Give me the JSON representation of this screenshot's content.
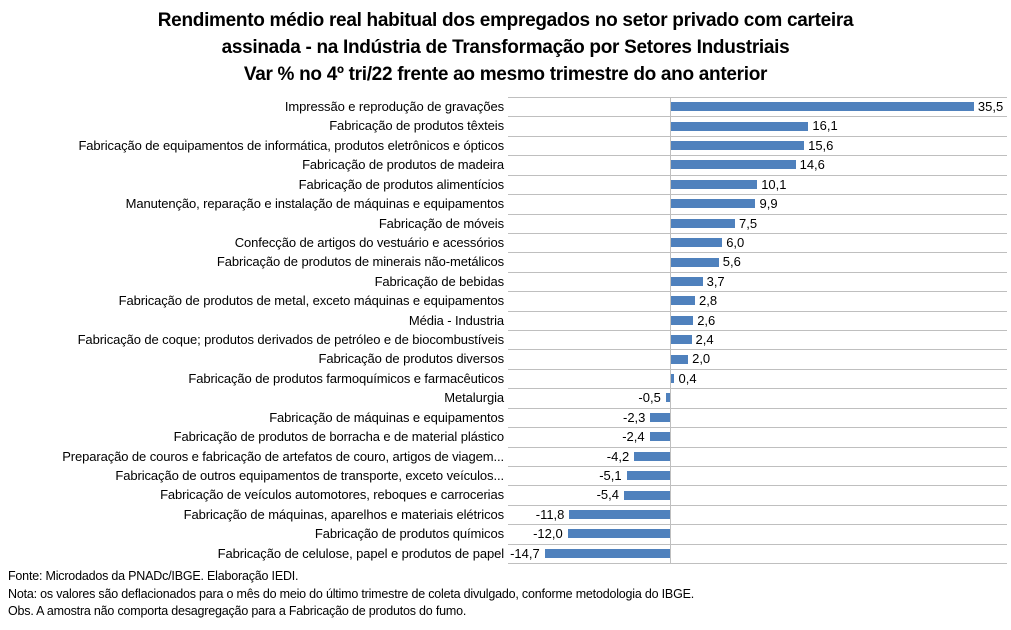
{
  "title": {
    "lines": [
      "Rendimento médio real habitual dos empregados no setor privado com carteira",
      "assinada - na Indústria de Transformação por Setores Industriais",
      "Var % no 4º tri/22 frente ao mesmo trimestre do ano anterior"
    ]
  },
  "chart_data": {
    "type": "bar",
    "orientation": "horizontal",
    "title": "Rendimento médio real habitual dos empregados no setor privado com carteira assinada - na Indústria de Transformação por Setores Industriais - Var % no 4º tri/22 frente ao mesmo trimestre do ano anterior",
    "categories": [
      "Impressão e reprodução de gravações",
      "Fabricação de produtos têxteis",
      "Fabricação de equipamentos de informática, produtos eletrônicos e ópticos",
      "Fabricação de produtos de madeira",
      "Fabricação de produtos alimentícios",
      "Manutenção, reparação e instalação de máquinas e equipamentos",
      "Fabricação de móveis",
      "Confecção de artigos do vestuário e acessórios",
      "Fabricação de produtos de minerais não-metálicos",
      "Fabricação de bebidas",
      "Fabricação de produtos de metal, exceto máquinas e equipamentos",
      "Média - Industria",
      "Fabricação de coque; produtos derivados de petróleo e de biocombustíveis",
      "Fabricação de produtos diversos",
      "Fabricação de produtos farmoquímicos e farmacêuticos",
      "Metalurgia",
      "Fabricação de máquinas e equipamentos",
      "Fabricação de produtos de borracha e de material plástico",
      "Preparação de couros e fabricação de artefatos de couro, artigos de viagem...",
      "Fabricação de outros equipamentos de transporte, exceto veículos...",
      "Fabricação de veículos automotores, reboques e carrocerias",
      "Fabricação de máquinas, aparelhos e materiais elétricos",
      "Fabricação de produtos químicos",
      "Fabricação de celulose, papel e produtos de papel"
    ],
    "values": [
      35.5,
      16.1,
      15.6,
      14.6,
      10.1,
      9.9,
      7.5,
      6.0,
      5.6,
      3.7,
      2.8,
      2.6,
      2.4,
      2.0,
      0.4,
      -0.5,
      -2.3,
      -2.4,
      -4.2,
      -5.1,
      -5.4,
      -11.8,
      -12.0,
      -14.7
    ],
    "value_labels": [
      "35,5",
      "16,1",
      "15,6",
      "14,6",
      "10,1",
      "9,9",
      "7,5",
      "6,0",
      "5,6",
      "3,7",
      "2,8",
      "2,6",
      "2,4",
      "2,0",
      "0,4",
      "-0,5",
      "-2,3",
      "-2,4",
      "-4,2",
      "-5,1",
      "-5,4",
      "-11,8",
      "-12,0",
      "-14,7"
    ],
    "xlim": [
      -19,
      39.5
    ],
    "xlabel": "",
    "ylabel": "",
    "legend": "none",
    "grid": "category-separator-lines",
    "decimal_separator": ",",
    "bar_color": "#4F81BD",
    "gridline_color": "#BFBFBF",
    "text_color": "#000000"
  },
  "footer": {
    "lines": [
      "Fonte: Microdados da PNADc/IBGE. Elaboração IEDI.",
      "Nota: os valores são deflacionados para o mês do meio do último trimestre de coleta divulgado, conforme metodologia do IBGE.",
      "Obs. A amostra não comporta desagregação para a Fabricação de produtos do fumo."
    ]
  }
}
